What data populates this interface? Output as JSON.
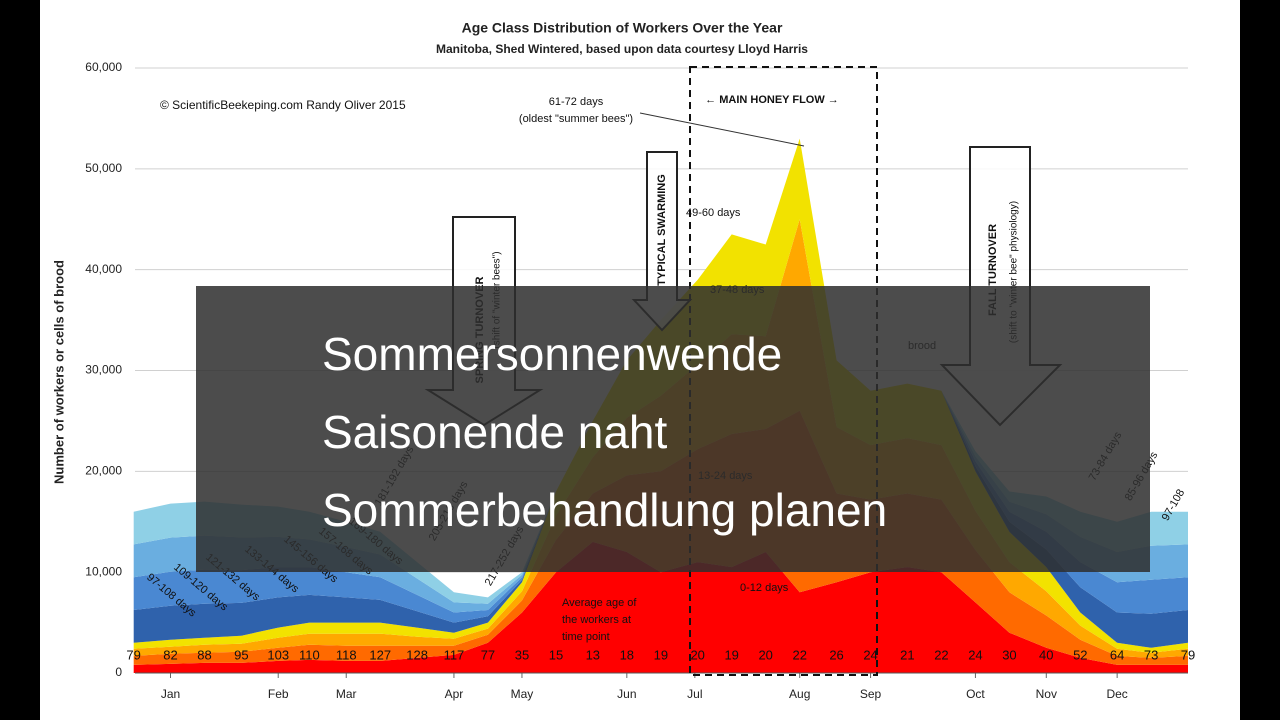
{
  "chart_data": {
    "type": "area",
    "stacked": true,
    "title": "Age Class Distribution of Workers Over the Year",
    "subtitle": "Manitoba, Shed Wintered, based upon data courtesy Lloyd Harris",
    "ylabel": "Number of workers or cells of brood",
    "x": [
      2,
      15,
      27,
      40,
      53,
      64,
      77,
      89,
      102,
      115,
      127,
      139,
      151,
      164,
      176,
      188,
      201,
      213,
      225,
      237,
      250,
      262,
      275,
      287,
      299,
      311,
      324,
      336,
      349,
      361,
      374
    ],
    "xlim": [
      0,
      374
    ],
    "xticks": [
      {
        "value": 15,
        "label": "Jan"
      },
      {
        "value": 53,
        "label": "Feb"
      },
      {
        "value": 77,
        "label": "Mar"
      },
      {
        "value": 115,
        "label": "Apr"
      },
      {
        "value": 139,
        "label": "May"
      },
      {
        "value": 176,
        "label": "Jun"
      },
      {
        "value": 200,
        "label": "Jul"
      },
      {
        "value": 237,
        "label": "Aug"
      },
      {
        "value": 262,
        "label": "Sep"
      },
      {
        "value": 299,
        "label": "Oct"
      },
      {
        "value": 324,
        "label": "Nov"
      },
      {
        "value": 349,
        "label": "Dec"
      }
    ],
    "ylim": [
      0,
      60000
    ],
    "yticks": [
      0,
      {
        "value": 10000,
        "label": "10,000"
      },
      {
        "value": 20000,
        "label": "20,000"
      },
      {
        "value": 30000,
        "label": "30,000"
      },
      {
        "value": 40000,
        "label": "40,000"
      },
      {
        "value": 50000,
        "label": "50,000"
      },
      {
        "value": 60000,
        "label": "60,000"
      }
    ],
    "grid": true,
    "series": [
      {
        "name": "0-12 days",
        "color": "#ff0000",
        "values": [
          800,
          900,
          1000,
          1000,
          1200,
          1300,
          1200,
          1200,
          1500,
          1800,
          3000,
          6000,
          10000,
          13000,
          12000,
          10000,
          11000,
          10500,
          12000,
          8000,
          9000,
          10000,
          10500,
          10000,
          7000,
          4000,
          2500,
          1500,
          800,
          800,
          800
        ]
      },
      {
        "name": "13-24 days",
        "color": "#ff6a00",
        "values": [
          900,
          1000,
          1000,
          1100,
          1300,
          1500,
          1500,
          1500,
          1200,
          900,
          800,
          1200,
          3200,
          4800,
          7600,
          10000,
          11200,
          13200,
          12200,
          18000,
          8800,
          7200,
          7300,
          7200,
          5200,
          4000,
          3200,
          1800,
          900,
          700,
          900
        ]
      },
      {
        "name": "37-48 days",
        "color": "#ffa800",
        "values": [
          700,
          700,
          800,
          800,
          1000,
          1100,
          1200,
          1200,
          900,
          700,
          600,
          900,
          2400,
          3600,
          5700,
          7500,
          8400,
          9900,
          9200,
          19000,
          6600,
          5400,
          5500,
          5400,
          3900,
          3000,
          2400,
          1400,
          700,
          500,
          700
        ]
      },
      {
        "name": "49-60 days",
        "color": "#f2e200",
        "values": [
          600,
          700,
          700,
          800,
          1000,
          1100,
          1100,
          1100,
          900,
          600,
          600,
          900,
          2400,
          3600,
          5700,
          7500,
          8400,
          9900,
          9100,
          8000,
          6600,
          5400,
          5400,
          5400,
          3900,
          3000,
          2400,
          1300,
          600,
          500,
          600
        ]
      },
      {
        "name": "97-108 days",
        "color": "#2f62ac",
        "values": [
          3250,
          3375,
          3375,
          3250,
          3000,
          2750,
          2500,
          2250,
          1625,
          1000,
          625,
          250,
          0,
          0,
          0,
          0,
          0,
          0,
          0,
          0,
          0,
          0,
          0,
          0,
          500,
          1000,
          1750,
          2500,
          3000,
          3375,
          3250
        ]
      },
      {
        "name": "109-120 days",
        "color": "#4a88d2",
        "values": [
          3250,
          3375,
          3375,
          3250,
          3000,
          2750,
          2500,
          2250,
          1625,
          1000,
          625,
          250,
          0,
          0,
          0,
          0,
          0,
          0,
          0,
          0,
          0,
          0,
          0,
          0,
          500,
          1000,
          1750,
          2500,
          3000,
          3375,
          3250
        ]
      },
      {
        "name": "121-132 days",
        "color": "#6aaee0",
        "values": [
          3250,
          3375,
          3375,
          3250,
          3000,
          2750,
          2500,
          2250,
          1625,
          1000,
          625,
          250,
          0,
          0,
          0,
          0,
          0,
          0,
          0,
          0,
          0,
          0,
          0,
          0,
          500,
          1000,
          1750,
          2500,
          3000,
          3375,
          3250
        ]
      },
      {
        "name": "133-144 days",
        "color": "#8fd0e6",
        "values": [
          3250,
          3375,
          3375,
          3250,
          3000,
          2750,
          2500,
          2250,
          1625,
          1000,
          625,
          250,
          0,
          0,
          0,
          0,
          0,
          0,
          0,
          0,
          0,
          0,
          0,
          0,
          500,
          1000,
          1750,
          2500,
          3000,
          3375,
          3250
        ]
      }
    ],
    "avg_age": [
      79,
      82,
      88,
      95,
      103,
      110,
      118,
      127,
      128,
      117,
      77,
      35,
      15,
      13,
      18,
      19,
      20,
      19,
      20,
      22,
      26,
      24,
      21,
      22,
      24,
      30,
      40,
      52,
      64,
      73,
      79
    ],
    "annotations": [
      "© ScientificBeekeping.com Randy Oliver 2015",
      "61-72 days",
      "(oldest \"summer bees\")",
      "← MAIN HONEY FLOW →",
      "49-60 days",
      "37-48 days",
      "13-24 days",
      "0-12 days",
      "TYPICAL SWARMING",
      "SPRING TURNOVER",
      "(shift of \"winter bees\")",
      "FALL TURNOVER",
      "(shift to \"winter bee\" physiology)",
      "Average age of",
      "the workers at",
      "time point",
      "brood",
      "145-156 days",
      "157-168 days",
      "169-180 days",
      "181-192 days",
      "205-216 days",
      "217-252 days",
      "73-84 days",
      "85-96 days",
      "97-108"
    ]
  },
  "overlay": {
    "lines": [
      "Sommersonnenwende",
      "Saisonende naht",
      "Sommerbehandlung planen"
    ]
  }
}
